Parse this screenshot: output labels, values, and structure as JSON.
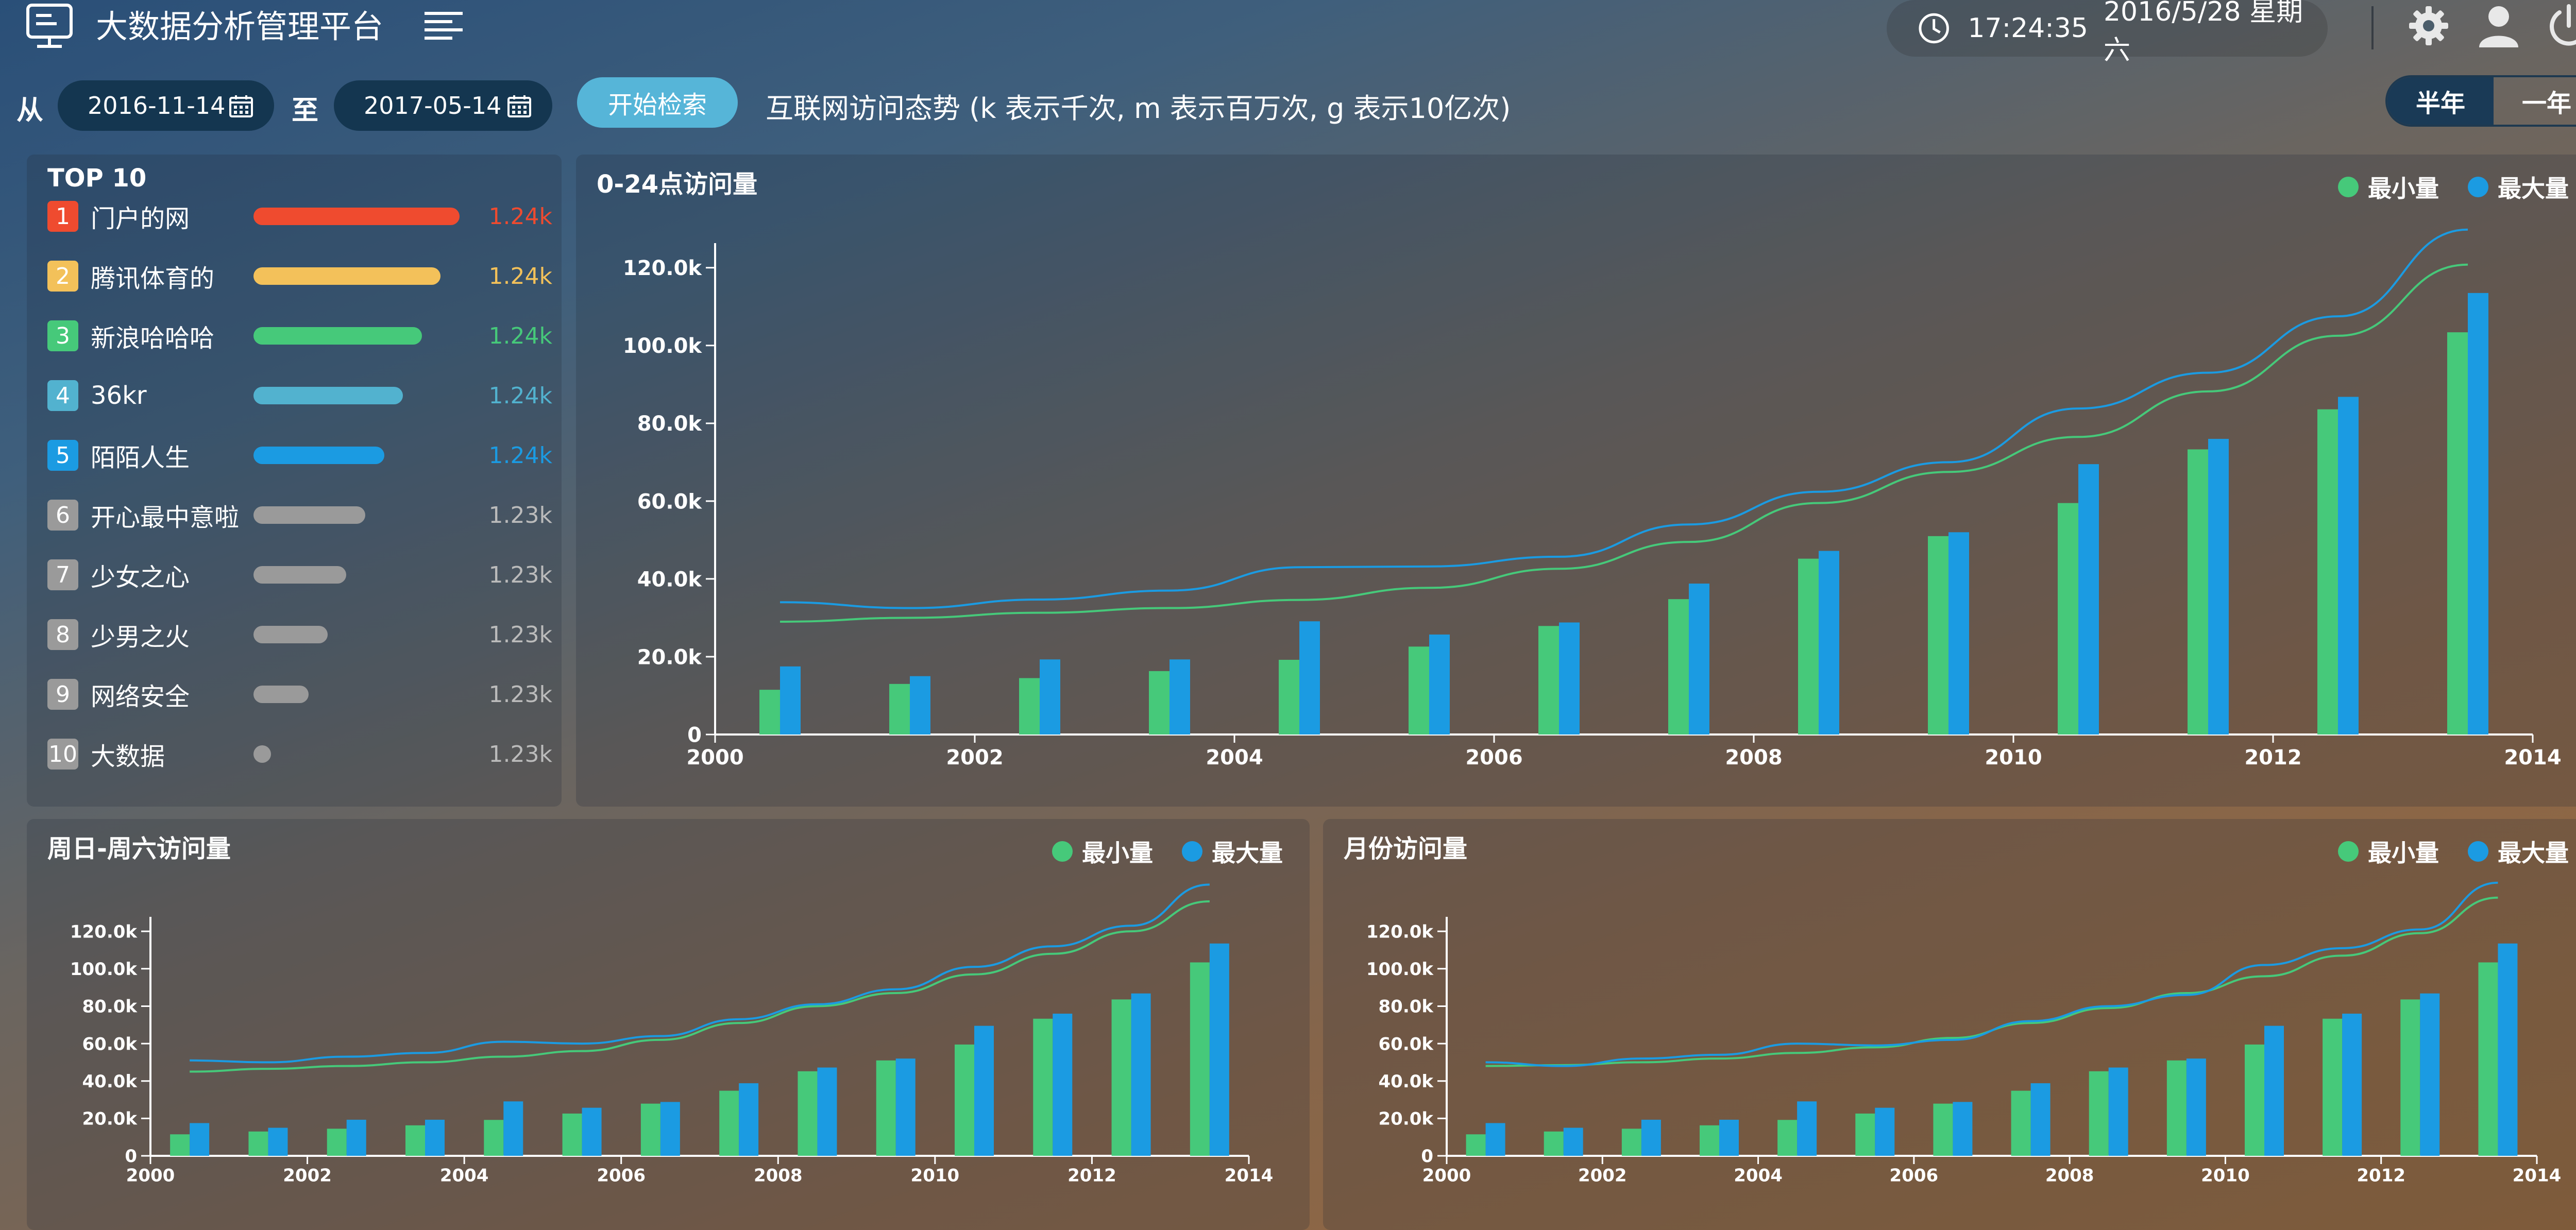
{
  "app": {
    "title": "大数据分析管理平台"
  },
  "header": {
    "clock": "17:24:35",
    "date": "2016/5/28 星期六"
  },
  "filter": {
    "from_label": "从",
    "start_date": "2016-11-14",
    "to_label": "至",
    "end_date": "2017-05-14",
    "search_label": "开始检索",
    "subtitle": "互联网访问态势 (k 表示千次, m 表示百万次, g 表示10亿次)",
    "range": {
      "half": "半年",
      "year": "一年"
    }
  },
  "top10": {
    "title": "TOP 10",
    "items": [
      {
        "rank": "1",
        "name": "门户的网",
        "value": "1.24k",
        "color": "#ef4b2f",
        "fraction": 1.0
      },
      {
        "rank": "2",
        "name": "腾讯体育的",
        "value": "1.24k",
        "color": "#f3c15a",
        "fraction": 0.9
      },
      {
        "rank": "3",
        "name": "新浪哈哈哈",
        "value": "1.24k",
        "color": "#46c97a",
        "fraction": 0.8
      },
      {
        "rank": "4",
        "name": "36kr",
        "value": "1.24k",
        "color": "#52b2cf",
        "fraction": 0.7
      },
      {
        "rank": "5",
        "name": "陌陌人生",
        "value": "1.24k",
        "color": "#1b9be2",
        "fraction": 0.6
      },
      {
        "rank": "6",
        "name": "开心最中意啦",
        "value": "1.23k",
        "color": "#9a9a9a",
        "fraction": 0.5
      },
      {
        "rank": "7",
        "name": "少女之心",
        "value": "1.23k",
        "color": "#9a9a9a",
        "fraction": 0.4
      },
      {
        "rank": "8",
        "name": "少男之火",
        "value": "1.23k",
        "color": "#9a9a9a",
        "fraction": 0.3
      },
      {
        "rank": "9",
        "name": "网络安全",
        "value": "1.23k",
        "color": "#9a9a9a",
        "fraction": 0.2
      },
      {
        "rank": "10",
        "name": "大数据",
        "value": "1.23k",
        "color": "#9a9a9a",
        "fraction": 0.0
      }
    ]
  },
  "legend": {
    "min": "最小量",
    "max": "最大量",
    "min_color": "#46c97a",
    "max_color": "#1b9be2"
  },
  "chart_data": [
    {
      "type": "bar",
      "title": "0-24点访问量",
      "x": [
        2000.5,
        2001.5,
        2002.5,
        2003.5,
        2004.5,
        2005.5,
        2006.5,
        2007.5,
        2008.5,
        2009.5,
        2010.5,
        2011.5,
        2012.5,
        2013.5
      ],
      "series": [
        {
          "name": "最小量",
          "type": "bar",
          "values": [
            11500,
            13000,
            14500,
            16300,
            19200,
            22600,
            27900,
            34800,
            45200,
            51000,
            59500,
            73300,
            83600,
            103400
          ]
        },
        {
          "name": "最大量",
          "type": "bar",
          "values": [
            17500,
            15000,
            19300,
            19300,
            29100,
            25700,
            28800,
            38800,
            47200,
            52000,
            69500,
            76000,
            86800,
            113500
          ]
        },
        {
          "name": "最小量",
          "type": "line",
          "values": [
            29000,
            30000,
            31300,
            32500,
            34600,
            37700,
            42600,
            49500,
            59500,
            67500,
            76500,
            88200,
            102500,
            120800
          ]
        },
        {
          "name": "最大量",
          "type": "line",
          "values": [
            34000,
            32500,
            34700,
            37000,
            43000,
            43200,
            45700,
            54000,
            62400,
            70000,
            83800,
            93000,
            107500,
            129800
          ]
        }
      ],
      "xlim": [
        2000,
        2014
      ],
      "ylim": [
        0,
        125000
      ],
      "xticks": [
        "2000",
        "2002",
        "2004",
        "2006",
        "2008",
        "2010",
        "2012",
        "2014"
      ],
      "yticks": [
        "0",
        "20.0k",
        "40.0k",
        "60.0k",
        "80.0k",
        "100.0k",
        "120.0k"
      ]
    },
    {
      "type": "bar",
      "title": "周日-周六访问量",
      "x": [
        2000.5,
        2001.5,
        2002.5,
        2003.5,
        2004.5,
        2005.5,
        2006.5,
        2007.5,
        2008.5,
        2009.5,
        2010.5,
        2011.5,
        2012.5,
        2013.5
      ],
      "series": [
        {
          "name": "最小量",
          "type": "bar",
          "values": [
            11500,
            13000,
            14500,
            16300,
            19200,
            22600,
            27900,
            34800,
            45200,
            51000,
            59500,
            73300,
            83600,
            103400
          ]
        },
        {
          "name": "最大量",
          "type": "bar",
          "values": [
            17500,
            15000,
            19300,
            19300,
            29100,
            25700,
            28800,
            38800,
            47200,
            52000,
            69500,
            76000,
            86800,
            113500
          ]
        },
        {
          "name": "最小量",
          "type": "line",
          "values": [
            45000,
            46500,
            48000,
            50000,
            53000,
            56000,
            62000,
            71000,
            80000,
            87000,
            97000,
            108000,
            120000,
            136000
          ]
        },
        {
          "name": "最大量",
          "type": "line",
          "values": [
            51000,
            50000,
            53000,
            55000,
            61000,
            60000,
            64000,
            73000,
            81000,
            89000,
            101000,
            112000,
            123000,
            145000
          ]
        }
      ],
      "xlim": [
        2000,
        2014
      ],
      "ylim": [
        0,
        125000
      ],
      "xticks": [
        "2000",
        "2002",
        "2004",
        "2006",
        "2008",
        "2010",
        "2012",
        "2014"
      ],
      "yticks": [
        "0",
        "20.0k",
        "40.0k",
        "60.0k",
        "80.0k",
        "100.0k",
        "120.0k"
      ]
    },
    {
      "type": "bar",
      "title": "月份访问量",
      "x": [
        2000.5,
        2001.5,
        2002.5,
        2003.5,
        2004.5,
        2005.5,
        2006.5,
        2007.5,
        2008.5,
        2009.5,
        2010.5,
        2011.5,
        2012.5,
        2013.5
      ],
      "series": [
        {
          "name": "最小量",
          "type": "bar",
          "values": [
            11500,
            13000,
            14500,
            16300,
            19200,
            22600,
            27900,
            34800,
            45200,
            51000,
            59500,
            73300,
            83600,
            103400
          ]
        },
        {
          "name": "最大量",
          "type": "bar",
          "values": [
            17500,
            15000,
            19300,
            19300,
            29100,
            25700,
            28800,
            38800,
            47200,
            52000,
            69500,
            76000,
            86800,
            113500
          ]
        },
        {
          "name": "最小量",
          "type": "line",
          "values": [
            48000,
            48500,
            50000,
            52000,
            55000,
            58000,
            63000,
            71000,
            79000,
            87000,
            96000,
            107000,
            119000,
            138000
          ]
        },
        {
          "name": "最大量",
          "type": "line",
          "values": [
            50000,
            48000,
            52000,
            54000,
            60000,
            59000,
            62000,
            72000,
            80000,
            86000,
            102000,
            111000,
            121000,
            146000
          ]
        }
      ],
      "xlim": [
        2000,
        2014
      ],
      "ylim": [
        0,
        125000
      ],
      "xticks": [
        "2000",
        "2002",
        "2004",
        "2006",
        "2008",
        "2010",
        "2012",
        "2014"
      ],
      "yticks": [
        "0",
        "20.0k",
        "40.0k",
        "60.0k",
        "80.0k",
        "100.0k",
        "120.0k"
      ]
    }
  ]
}
